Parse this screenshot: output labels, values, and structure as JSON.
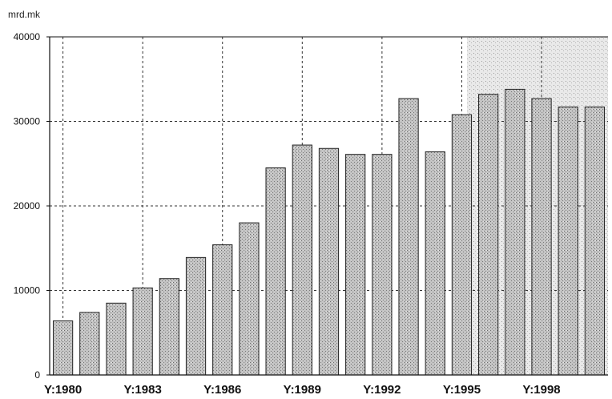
{
  "chart_data": {
    "type": "bar",
    "ylabel": "mrd.mk",
    "ylim": [
      0,
      40000
    ],
    "yticks": [
      0,
      10000,
      20000,
      30000,
      40000
    ],
    "xtick_labels": [
      "Y:1980",
      "Y:1983",
      "Y:1986",
      "Y:1989",
      "Y:1992",
      "Y:1995",
      "Y:1998"
    ],
    "categories": [
      "1980",
      "1981",
      "1982",
      "1983",
      "1984",
      "1985",
      "1986",
      "1987",
      "1988",
      "1989",
      "1990",
      "1991",
      "1992",
      "1993",
      "1994",
      "1995",
      "1996",
      "1997",
      "1998",
      "1999",
      "2000"
    ],
    "values": [
      6400,
      7400,
      8500,
      10300,
      11400,
      13900,
      15400,
      18000,
      24500,
      27200,
      26800,
      26100,
      26100,
      32700,
      26400,
      30800,
      33200,
      33800,
      32700,
      31700,
      31700
    ],
    "grid": true,
    "bar_color": "#b9b9b9",
    "shaded_region": {
      "from_category": "1995",
      "to_category": "2000",
      "color": "#e2e2e2"
    }
  }
}
